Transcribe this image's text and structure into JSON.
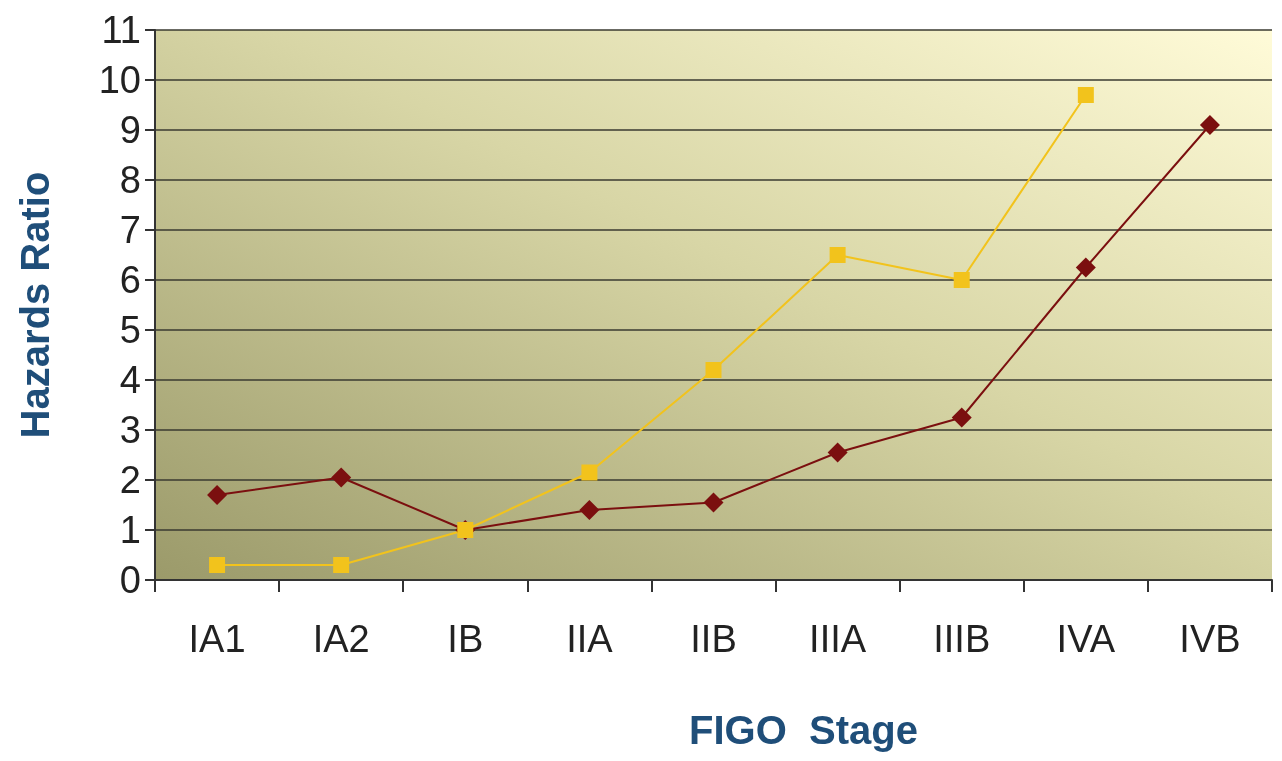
{
  "chart_data": {
    "type": "line",
    "xlabel": "FIGO  Stage",
    "ylabel": "Hazards Ratio",
    "categories": [
      "IA1",
      "IA2",
      "IB",
      "IIA",
      "IIB",
      "IIIA",
      "IIIB",
      "IVA",
      "IVB"
    ],
    "series": [
      {
        "color": "#7b0f0f",
        "marker": "diamond",
        "values": [
          1.7,
          2.05,
          1.0,
          1.4,
          1.55,
          2.55,
          3.25,
          6.25,
          9.1
        ]
      },
      {
        "color": "#f2c31c",
        "marker": "square",
        "values": [
          0.3,
          0.3,
          1.0,
          2.15,
          4.2,
          6.5,
          6.0,
          9.7,
          null
        ]
      }
    ],
    "ylim": [
      0,
      11
    ],
    "yticks": [
      0,
      1,
      2,
      3,
      4,
      5,
      6,
      7,
      8,
      9,
      10,
      11
    ],
    "grid": "y",
    "line_style": "solid"
  }
}
